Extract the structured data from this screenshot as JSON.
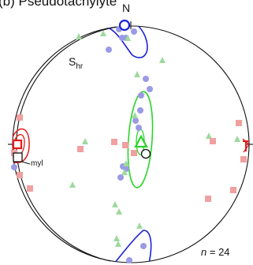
{
  "title": "(b) Pseudotachylyte",
  "north_label": "N",
  "plane_label": {
    "main": "S",
    "sub": "hr"
  },
  "myl_label": "myl",
  "count": {
    "variable": "n",
    "equals": "= 24"
  },
  "colors": {
    "poles_blue": "#9a9ae6",
    "triangles_green": "#9ed99e",
    "squares_red": "#f0a0a0",
    "contour_blue": "#1a22d6",
    "contour_green": "#2ad42a",
    "contour_red": "#e41b1b"
  },
  "symbols": [
    "blue-circle-poles",
    "green-triangle-poles",
    "red-square-poles",
    "open-square-mean",
    "open-circle-mean",
    "green-triangle-mean"
  ]
}
